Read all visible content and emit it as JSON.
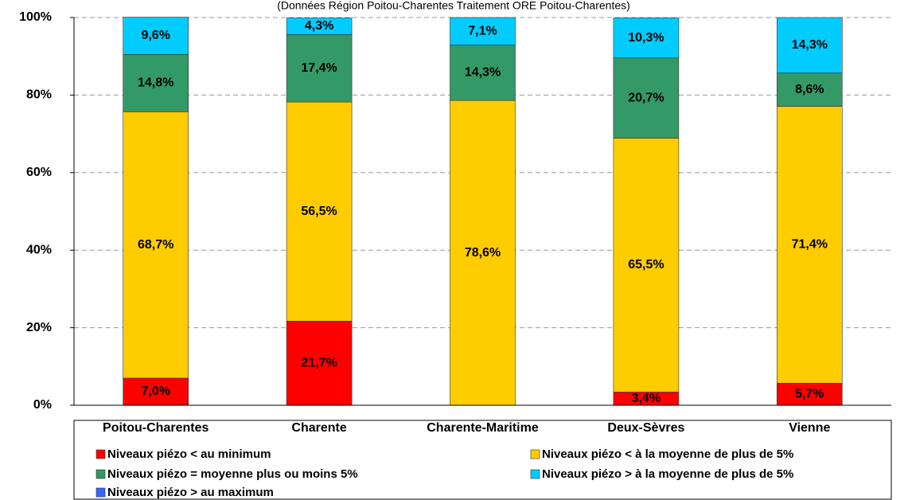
{
  "chart_data": {
    "type": "stacked_bar",
    "subtitle": "(Données Région Poitou-Charentes Traitement ORE Poitou-Charentes)",
    "categories": [
      "Poitou-Charentes",
      "Charente",
      "Charente-Maritime",
      "Deux-Sèvres",
      "Vienne"
    ],
    "series": [
      {
        "name": "Niveaux piézo < au minimum",
        "color": "#ff0000",
        "values": [
          7.0,
          21.7,
          null,
          3.4,
          5.7
        ],
        "value_labels": [
          "7,0%",
          "21,7%",
          null,
          "3,4%",
          "5,7%"
        ]
      },
      {
        "name": "Niveaux piézo < à la moyenne de plus de 5%",
        "color": "#ffcc00",
        "values": [
          68.7,
          56.5,
          78.6,
          65.5,
          71.4
        ],
        "value_labels": [
          "68,7%",
          "56,5%",
          "78,6%",
          "65,5%",
          "71,4%"
        ]
      },
      {
        "name": "Niveaux piézo = moyenne plus ou moins 5%",
        "color": "#339966",
        "values": [
          14.8,
          17.4,
          14.3,
          20.7,
          8.6
        ],
        "value_labels": [
          "14,8%",
          "17,4%",
          "14,3%",
          "20,7%",
          "8,6%"
        ]
      },
      {
        "name": "Niveaux piézo > à la moyenne de plus de 5%",
        "color": "#00ccff",
        "values": [
          9.6,
          4.3,
          7.1,
          10.3,
          14.3
        ],
        "value_labels": [
          "9,6%",
          "4,3%",
          "7,1%",
          "10,3%",
          "14,3%"
        ]
      },
      {
        "name": "Niveaux piézo > au maximum",
        "color": "#3366ff",
        "values": [
          null,
          null,
          null,
          null,
          null
        ],
        "value_labels": [
          null,
          null,
          null,
          null,
          null
        ]
      }
    ],
    "ylim": [
      0,
      100
    ],
    "yticks": [
      {
        "value": 0,
        "label": "0%"
      },
      {
        "value": 20,
        "label": "20%"
      },
      {
        "value": 40,
        "label": "40%"
      },
      {
        "value": 60,
        "label": "60%"
      },
      {
        "value": 80,
        "label": "80%"
      },
      {
        "value": 100,
        "label": "100%"
      }
    ],
    "grid": true,
    "legend": "bottom"
  }
}
